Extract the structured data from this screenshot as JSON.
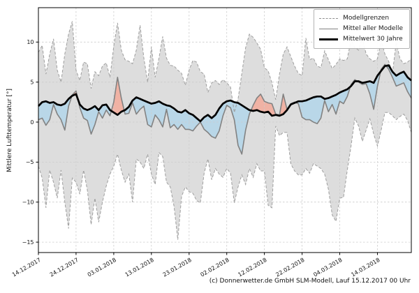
{
  "figure": {
    "ylabel": "Mittlere Lufttemperatur [°]",
    "footer": "(c) Donnerwetter.de GmbH SLM-Modell, Lauf 15.12.2017 00 Uhr"
  },
  "legend": {
    "position": "upper right",
    "items": [
      {
        "label": "Modellgrenzen",
        "style": "dashed-gray"
      },
      {
        "label": "Mittel aller Modelle",
        "style": "solid-gray"
      },
      {
        "label": "Mittelwert 30 Jahre",
        "style": "solid-black-thick"
      }
    ]
  },
  "chart_data": {
    "type": "line",
    "title": "",
    "xlabel": "",
    "ylabel": "Mittlere Lufttemperatur [°]",
    "x_start_date": "14.12.2017",
    "x_step_days": 1,
    "n_points": 100,
    "ylim": [
      -16.3,
      14.3
    ],
    "grid": true,
    "x_ticks_day_index": [
      0,
      10,
      20,
      30,
      40,
      50,
      60,
      70,
      80,
      90
    ],
    "x_ticklabels": [
      "14.12.2017",
      "24.12.2017",
      "03.01.2018",
      "13.01.2018",
      "23.01.2018",
      "02.02.2018",
      "12.02.2018",
      "22.02.2018",
      "04.03.2018",
      "14.03.2018"
    ],
    "y_ticks": [
      10,
      5,
      0,
      -5,
      -10,
      -15
    ],
    "y_ticklabels": [
      "10",
      "5",
      "0",
      "−5",
      "−10",
      "−15"
    ],
    "colors": {
      "envelope_fill": "#dddddd",
      "bound_line": "#9e9e9e",
      "model_mean_line": "#828282",
      "mean30_line": "#000000",
      "below_mean30_fill": "#b9d7e8",
      "above_mean30_fill": "#f0b2a4",
      "grid_line": "#cccccc",
      "axis": "#000000"
    },
    "series": [
      {
        "name": "Modellgrenzen obere Grenze",
        "style": "dashed",
        "values": [
          8.7,
          9.6,
          6.0,
          8.5,
          10.4,
          6.5,
          5.0,
          8.5,
          11.0,
          12.6,
          6.5,
          5.2,
          7.5,
          7.3,
          4.2,
          6.3,
          5.8,
          7.0,
          7.4,
          5.6,
          9.5,
          12.4,
          9.0,
          7.8,
          7.6,
          7.3,
          9.0,
          12.1,
          8.0,
          5.0,
          9.4,
          5.6,
          8.0,
          10.7,
          8.0,
          7.1,
          7.0,
          6.5,
          6.1,
          4.6,
          6.5,
          7.7,
          7.5,
          6.3,
          6.0,
          3.7,
          4.9,
          5.2,
          4.7,
          5.3,
          4.9,
          4.4,
          1.2,
          2.9,
          6.1,
          9.3,
          11.0,
          10.6,
          9.9,
          9.1,
          6.8,
          6.4,
          4.9,
          2.8,
          6.0,
          8.5,
          9.4,
          8.2,
          7.0,
          6.1,
          5.8,
          10.5,
          7.8,
          8.0,
          7.0,
          6.8,
          8.9,
          7.8,
          6.7,
          7.2,
          7.9,
          7.7,
          7.9,
          10.3,
          9.3,
          9.0,
          10.5,
          8.5,
          7.9,
          7.6,
          7.9,
          10.2,
          8.5,
          7.6,
          6.1,
          10.0,
          7.9,
          7.3,
          7.5,
          7.9
        ]
      },
      {
        "name": "Modellgrenzen untere Grenze",
        "style": "dashed",
        "values": [
          -5.5,
          -7.0,
          -10.7,
          -6.0,
          -7.5,
          -9.5,
          -6.0,
          -10.0,
          -13.3,
          -7.0,
          -7.5,
          -9.0,
          -6.0,
          -8.5,
          -12.8,
          -9.5,
          -12.5,
          -10.0,
          -8.0,
          -6.5,
          -5.5,
          -4.0,
          -6.0,
          -7.5,
          -6.5,
          -10.0,
          -4.6,
          -5.0,
          -5.8,
          -4.0,
          -6.5,
          -7.8,
          -3.8,
          -4.3,
          -7.5,
          -8.1,
          -10.5,
          -14.7,
          -9.3,
          -8.1,
          -8.7,
          -8.9,
          -9.8,
          -10.1,
          -6.4,
          -4.6,
          -7.2,
          -5.8,
          -6.5,
          -6.9,
          -5.8,
          -6.4,
          -10.1,
          -8.1,
          -6.6,
          -7.8,
          -5.8,
          -6.9,
          -5.2,
          -6.1,
          -6.1,
          -10.4,
          -10.7,
          -0.5,
          -1.7,
          -1.3,
          -1.3,
          -5.2,
          -6.1,
          -6.6,
          -6.6,
          -5.8,
          -6.4,
          -5.2,
          -5.5,
          -5.8,
          -6.5,
          -8.4,
          -11.6,
          -12.4,
          -9.5,
          -9.4,
          -6.0,
          -3.0,
          0.5,
          -0.5,
          -2.4,
          -1.0,
          0.4,
          -1.5,
          -3.0,
          -1.0,
          1.2,
          1.2,
          0.8,
          0.3,
          0.7,
          1.0,
          0.2,
          -1.3
        ]
      },
      {
        "name": "Mittel aller Modelle",
        "style": "solid",
        "values": [
          0.3,
          0.5,
          -0.4,
          0.3,
          2.2,
          1.0,
          0.3,
          -1.0,
          2.0,
          3.4,
          3.9,
          1.8,
          0.5,
          0.2,
          -1.5,
          -0.3,
          1.3,
          0.5,
          1.5,
          0.8,
          2.5,
          5.6,
          3.0,
          1.0,
          1.1,
          2.4,
          1.0,
          1.6,
          2.0,
          -0.3,
          -0.6,
          0.9,
          0.3,
          -0.6,
          1.6,
          -0.7,
          -0.3,
          -0.9,
          -0.3,
          -0.9,
          -0.9,
          -1.1,
          -0.5,
          0.0,
          -0.9,
          -1.3,
          -1.8,
          -2.0,
          -1.1,
          0.8,
          2.1,
          1.8,
          0.3,
          -2.9,
          -4.0,
          -1.0,
          1.0,
          2.1,
          3.0,
          3.5,
          2.6,
          2.4,
          2.3,
          1.0,
          0.9,
          3.5,
          1.6,
          2.3,
          2.5,
          2.3,
          0.6,
          0.3,
          0.3,
          0.0,
          -0.2,
          0.5,
          2.7,
          1.3,
          2.2,
          1.0,
          2.6,
          2.3,
          3.2,
          4.7,
          5.3,
          5.0,
          4.7,
          4.8,
          3.5,
          1.6,
          4.5,
          6.6,
          7.2,
          6.6,
          5.6,
          4.5,
          4.7,
          4.9,
          3.8,
          3.0
        ]
      },
      {
        "name": "Mittelwert 30 Jahre",
        "style": "solid-thick",
        "values": [
          2.0,
          2.5,
          2.6,
          2.4,
          2.5,
          2.2,
          2.1,
          2.3,
          2.9,
          3.3,
          3.5,
          2.2,
          1.7,
          1.5,
          1.7,
          2.0,
          1.5,
          2.1,
          2.2,
          1.5,
          1.2,
          0.9,
          1.3,
          1.5,
          1.9,
          2.7,
          3.1,
          2.9,
          2.7,
          2.5,
          2.3,
          2.4,
          2.6,
          2.3,
          2.1,
          2.0,
          1.7,
          1.3,
          1.2,
          1.5,
          1.1,
          0.9,
          0.5,
          0.1,
          0.6,
          0.9,
          0.5,
          0.9,
          1.7,
          2.3,
          2.6,
          2.7,
          2.5,
          2.4,
          2.1,
          1.8,
          1.5,
          1.4,
          1.5,
          1.3,
          1.2,
          1.3,
          0.8,
          0.9,
          0.8,
          1.0,
          1.5,
          2.2,
          2.4,
          2.6,
          2.6,
          2.7,
          2.9,
          3.1,
          3.2,
          3.2,
          2.9,
          3.0,
          3.2,
          3.4,
          3.7,
          3.9,
          4.1,
          4.5,
          5.1,
          5.1,
          4.9,
          5.0,
          5.1,
          4.9,
          5.8,
          6.4,
          7.0,
          7.1,
          6.3,
          5.8,
          6.1,
          6.3,
          5.6,
          5.2
        ]
      }
    ]
  }
}
